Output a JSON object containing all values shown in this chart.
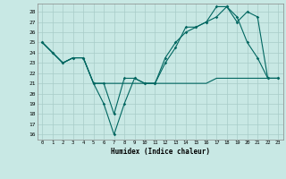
{
  "xlabel": "Humidex (Indice chaleur)",
  "bg_color": "#c8e8e4",
  "grid_color": "#a8ccc8",
  "line_color": "#006660",
  "xlim": [
    -0.5,
    23.5
  ],
  "ylim": [
    15.5,
    28.8
  ],
  "xticks": [
    0,
    1,
    2,
    3,
    4,
    5,
    6,
    7,
    8,
    9,
    10,
    11,
    12,
    13,
    14,
    15,
    16,
    17,
    18,
    19,
    20,
    21,
    22,
    23
  ],
  "yticks": [
    16,
    17,
    18,
    19,
    20,
    21,
    22,
    23,
    24,
    25,
    26,
    27,
    28
  ],
  "line1_x": [
    0,
    1,
    2,
    3,
    4,
    5,
    6,
    7,
    8,
    9,
    10,
    11,
    12,
    13,
    14,
    15,
    16,
    17,
    18,
    19,
    20,
    21,
    22,
    23
  ],
  "line1_y": [
    25.0,
    24.0,
    23.0,
    23.5,
    23.5,
    21.0,
    19.0,
    16.0,
    19.0,
    21.5,
    21.0,
    21.0,
    23.0,
    24.5,
    26.5,
    26.5,
    27.0,
    28.5,
    28.5,
    27.5,
    25.0,
    23.5,
    21.5,
    21.5
  ],
  "line2_x": [
    0,
    1,
    2,
    3,
    4,
    5,
    6,
    7,
    8,
    9,
    10,
    11,
    12,
    13,
    14,
    15,
    16,
    17,
    18,
    19,
    20,
    21,
    22,
    23
  ],
  "line2_y": [
    25.0,
    24.0,
    23.0,
    23.5,
    23.5,
    21.0,
    21.0,
    18.0,
    21.5,
    21.5,
    21.0,
    21.0,
    23.5,
    25.0,
    26.0,
    26.5,
    27.0,
    27.5,
    28.5,
    27.0,
    28.0,
    27.5,
    21.5,
    21.5
  ],
  "line3_x": [
    0,
    1,
    2,
    3,
    4,
    5,
    6,
    7,
    8,
    9,
    10,
    11,
    12,
    13,
    14,
    15,
    16,
    17,
    18,
    19,
    20,
    21,
    22,
    23
  ],
  "line3_y": [
    25.0,
    24.0,
    23.0,
    23.5,
    23.5,
    21.0,
    21.0,
    21.0,
    21.0,
    21.0,
    21.0,
    21.0,
    21.0,
    21.0,
    21.0,
    21.0,
    21.0,
    21.5,
    21.5,
    21.5,
    21.5,
    21.5,
    21.5,
    21.5
  ]
}
